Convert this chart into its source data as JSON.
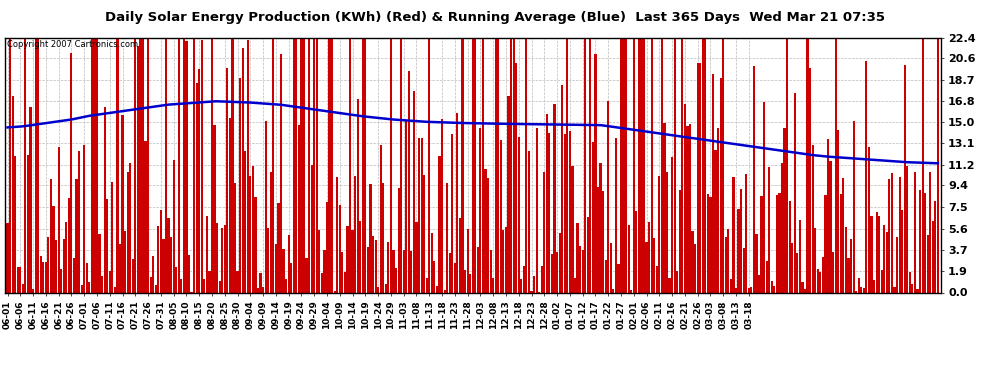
{
  "title": "Daily Solar Energy Production (KWh) (Red) & Running Average (Blue)  Last 365 Days  Wed Mar 21 07:35",
  "copyright": "Copyright 2007 Cartronics.com",
  "yticks": [
    0.0,
    1.9,
    3.7,
    5.6,
    7.5,
    9.4,
    11.2,
    13.1,
    15.0,
    16.8,
    18.7,
    20.6,
    22.4
  ],
  "ymax": 22.4,
  "bar_color": "#cc0000",
  "line_color": "#0000cc",
  "background_color": "#ffffff",
  "grid_color": "#bbbbbb",
  "xtick_labels": [
    "06-01",
    "06-06",
    "06-11",
    "06-16",
    "06-21",
    "06-26",
    "07-01",
    "07-06",
    "07-11",
    "07-16",
    "07-21",
    "07-26",
    "07-31",
    "08-05",
    "08-10",
    "08-15",
    "08-20",
    "08-25",
    "08-30",
    "09-04",
    "09-09",
    "09-14",
    "09-19",
    "09-24",
    "09-29",
    "10-04",
    "10-09",
    "10-14",
    "10-19",
    "10-24",
    "10-29",
    "11-03",
    "11-08",
    "11-13",
    "11-18",
    "11-23",
    "11-28",
    "12-03",
    "12-08",
    "12-13",
    "12-18",
    "12-23",
    "12-28",
    "01-02",
    "01-07",
    "01-12",
    "01-17",
    "01-22",
    "01-27",
    "02-01",
    "02-06",
    "02-11",
    "02-16",
    "02-21",
    "02-26",
    "03-03",
    "03-08",
    "03-13",
    "03-18"
  ],
  "n_days": 365,
  "avg_profile": [
    14.5,
    14.6,
    14.8,
    15.0,
    15.2,
    15.5,
    15.7,
    15.9,
    16.1,
    16.3,
    16.5,
    16.6,
    16.7,
    16.8,
    16.75,
    16.7,
    16.6,
    16.5,
    16.3,
    16.1,
    15.9,
    15.7,
    15.5,
    15.35,
    15.2,
    15.1,
    15.0,
    14.95,
    14.9,
    14.87,
    14.84,
    14.82,
    14.8,
    14.78,
    14.76,
    14.74,
    14.72,
    14.7,
    14.5,
    14.3,
    14.1,
    13.9,
    13.7,
    13.5,
    13.3,
    13.1,
    12.9,
    12.7,
    12.5,
    12.3,
    12.1,
    11.95,
    11.85,
    11.75,
    11.65,
    11.55,
    11.45,
    11.4,
    11.35
  ]
}
